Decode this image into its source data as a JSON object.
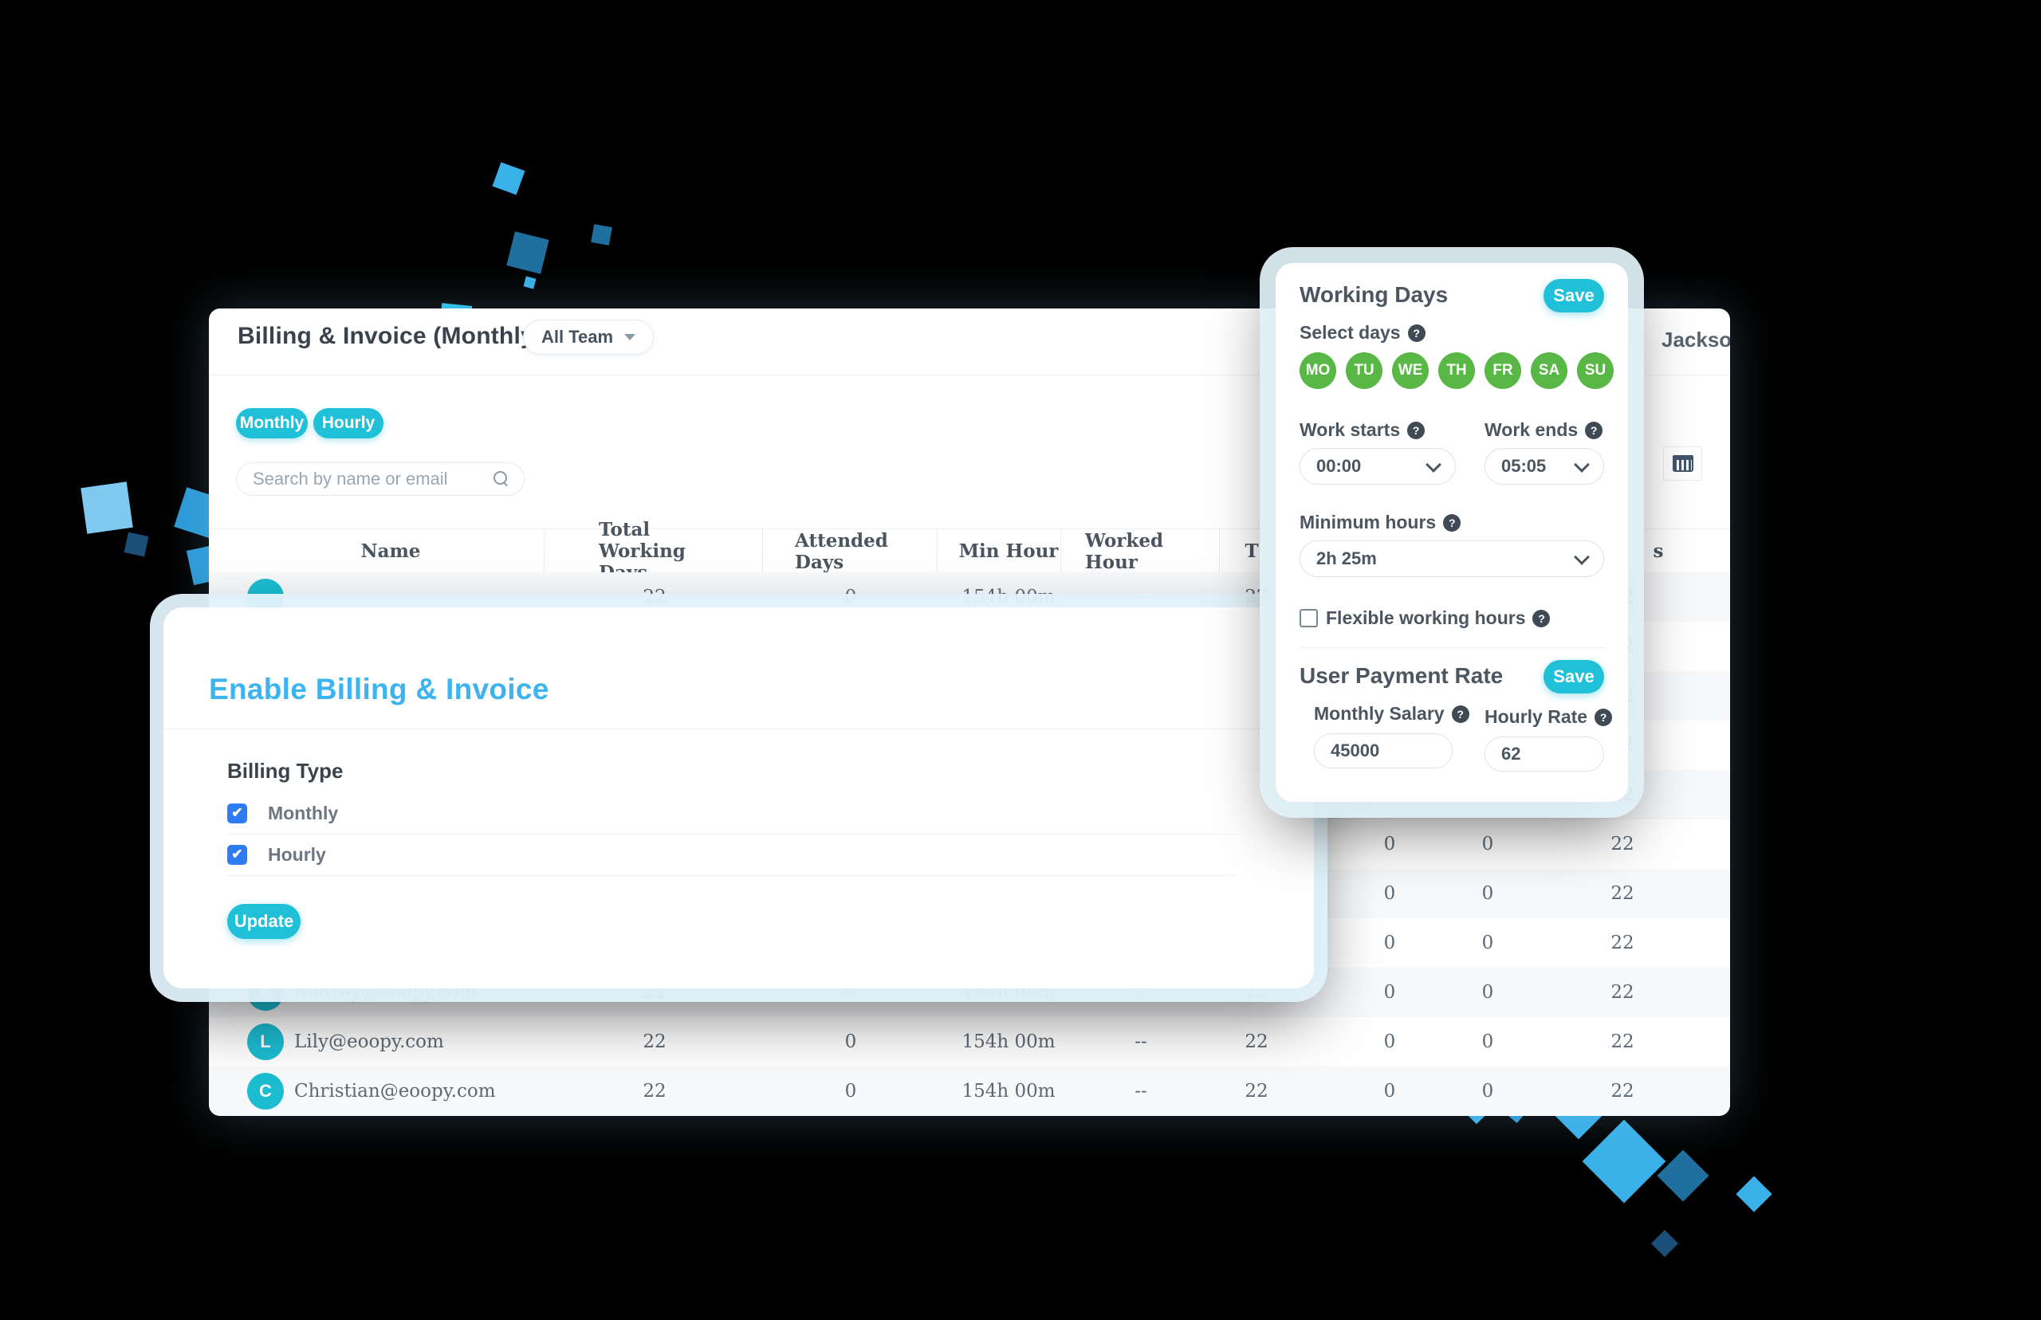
{
  "colors": {
    "teal": "#1fc0d8",
    "day_green": "#59b745",
    "checkbox_blue": "#2e7bf2",
    "title_blue": "#3db4ef",
    "avatar_teal": "#1cbcd1",
    "sq_light": "#3ab1e8",
    "sq_mid": "#2c9ad8",
    "sq_dark": "#1f6f9f",
    "sq_navy": "#1b4f78"
  },
  "header": {
    "title": "Billing & Invoice (Monthly)",
    "team_filter_label": "All Team",
    "user_name": "Jackson."
  },
  "toolbar": {
    "tabs": [
      {
        "label": "Monthly"
      },
      {
        "label": "Hourly"
      }
    ],
    "search_placeholder": "Search by name or email"
  },
  "table": {
    "headers": {
      "name": "Name",
      "total_working_days": "Total Working Days",
      "attended_days": "Attended Days",
      "min_hour": "Min Hour",
      "worked_hour": "Worked Hour",
      "truncated": "T",
      "right_fragment": "s"
    },
    "default_row": {
      "total_working_days": "22",
      "attended_days": "0",
      "min_hour": "154h 00m",
      "worked_hour": "--",
      "col6": "22",
      "col7": "0",
      "col8": "0",
      "col9": "22"
    },
    "row_count": 11,
    "user_rows_start": 9,
    "users": [
      {
        "initial": "A",
        "email": "Audrey@eoopy.com"
      },
      {
        "initial": "L",
        "email": "Lily@eoopy.com"
      },
      {
        "initial": "C",
        "email": "Christian@eoopy.com"
      }
    ]
  },
  "modal": {
    "title": "Enable Billing & Invoice",
    "section_label": "Billing Type",
    "options": [
      {
        "label": "Monthly",
        "checked": true
      },
      {
        "label": "Hourly",
        "checked": true
      }
    ],
    "update_label": "Update",
    "check_glyph": "✔"
  },
  "working_days_panel": {
    "title": "Working Days",
    "save_label": "Save",
    "select_days_label": "Select days",
    "days": [
      "MO",
      "TU",
      "WE",
      "TH",
      "FR",
      "SA",
      "SU"
    ],
    "work_starts_label": "Work starts",
    "work_starts_value": "00:00",
    "work_ends_label": "Work ends",
    "work_ends_value": "05:05",
    "minimum_hours_label": "Minimum hours",
    "minimum_hours_value": "2h 25m",
    "flexible_label": "Flexible working hours",
    "payment": {
      "title": "User Payment Rate",
      "save_label": "Save",
      "monthly_salary_label": "Monthly Salary",
      "monthly_salary_value": "45000",
      "hourly_rate_label": "Hourly Rate",
      "hourly_rate_value": "62"
    },
    "help_glyph": "?"
  }
}
